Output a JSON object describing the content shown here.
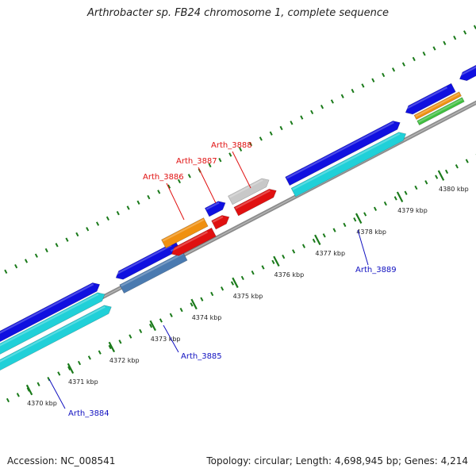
{
  "title": "Arthrobacter sp. FB24 chromosome 1, complete sequence",
  "footer": {
    "accession": "Accession: NC_008541",
    "summary": "Topology: circular; Length: 4,698,945 bp; Genes: 4,214"
  },
  "colors": {
    "backbone": "#8c8c8c",
    "ticks": "#1a7a1a",
    "forward_cds": "#1010e0",
    "forward_rna": "#20d0d8",
    "reverse_cds": "#e01010",
    "orange": "#f09010",
    "gray": "#c8c8c8",
    "steel": "#4a7ab0",
    "green": "#40c040",
    "label_red": "#e01010",
    "label_blue": "#1010c0"
  },
  "scale_labels": [
    "4370 kbp",
    "4371 kbp",
    "4372 kbp",
    "4373 kbp",
    "4374 kbp",
    "4375 kbp",
    "4376 kbp",
    "4377 kbp",
    "4378 kbp",
    "4379 kbp",
    "4380 kbp"
  ],
  "gene_labels": [
    {
      "text": "Arth_3884",
      "color": "blue"
    },
    {
      "text": "Arth_3885",
      "color": "blue"
    },
    {
      "text": "Arth_3886",
      "color": "red"
    },
    {
      "text": "Arth_3887",
      "color": "red"
    },
    {
      "text": "Arth_3888",
      "color": "red"
    },
    {
      "text": "Arth_3889",
      "color": "blue"
    }
  ]
}
